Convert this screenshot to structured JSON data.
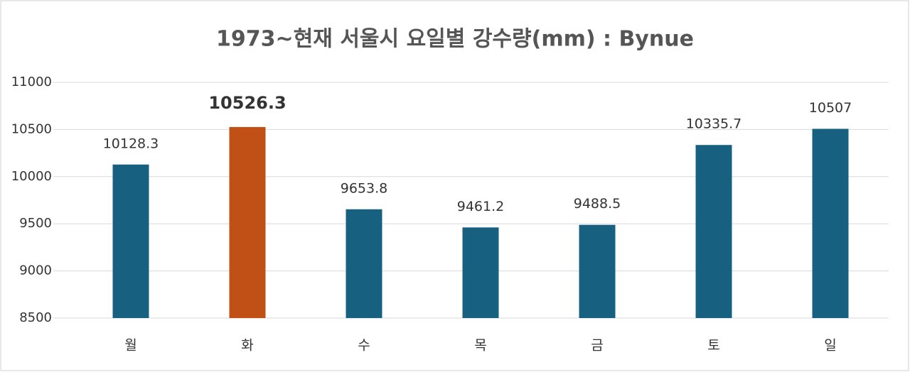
{
  "chart_data": {
    "type": "bar",
    "title": "1973~현재 서울시 요일별 강수량(mm) : Bynue",
    "categories": [
      "월",
      "화",
      "수",
      "목",
      "금",
      "토",
      "일"
    ],
    "values": [
      10128.3,
      10526.3,
      9653.8,
      9461.2,
      9488.5,
      10335.7,
      10507
    ],
    "color": "#17607f",
    "colors": [
      "#17607f",
      "#c05016",
      "#17607f",
      "#17607f",
      "#17607f",
      "#17607f",
      "#17607f"
    ],
    "ylim": [
      8500,
      11000
    ],
    "yticks": [
      8500,
      9000,
      9500,
      10000,
      10500,
      11000
    ],
    "grid": true
  }
}
